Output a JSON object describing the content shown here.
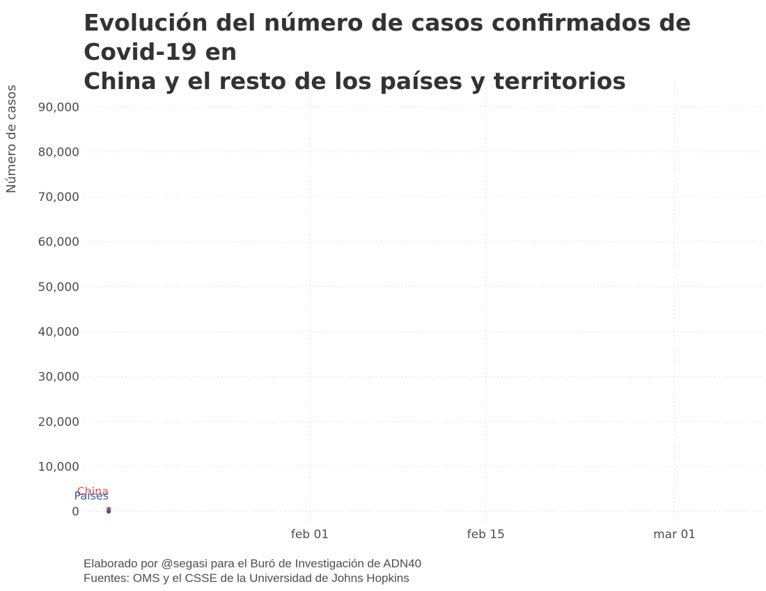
{
  "title": {
    "line1": "Evolución del número de casos confirmados de Covid-19 en",
    "line2": "China y el resto de los países y territorios"
  },
  "caption": {
    "line1": "Elaborado por @segasi para el Buró de Investigación de ADN40",
    "line2": "Fuentes: OMS y el CSSE de la Universidad de Johns Hopkins"
  },
  "chart_data": {
    "type": "line",
    "title": "Evolución del número de casos confirmados de Covid-19 en China y el resto de los países y territorios",
    "xlabel": "",
    "ylabel": "Número de casos",
    "x_type": "date",
    "xlim": [
      "2020-01-14",
      "2020-03-08"
    ],
    "ylim": [
      -3000,
      96000
    ],
    "x_ticks": [
      {
        "date": "2020-02-01",
        "label": "feb 01"
      },
      {
        "date": "2020-02-15",
        "label": "feb 15"
      },
      {
        "date": "2020-03-01",
        "label": "mar 01"
      }
    ],
    "y_ticks": [
      {
        "value": 0,
        "label": "0"
      },
      {
        "value": 10000,
        "label": "10,000"
      },
      {
        "value": 20000,
        "label": "20,000"
      },
      {
        "value": 30000,
        "label": "30,000"
      },
      {
        "value": 40000,
        "label": "40,000"
      },
      {
        "value": 50000,
        "label": "50,000"
      },
      {
        "value": 60000,
        "label": "60,000"
      },
      {
        "value": 70000,
        "label": "70,000"
      },
      {
        "value": 80000,
        "label": "80,000"
      },
      {
        "value": 90000,
        "label": "90,000"
      }
    ],
    "grid": true,
    "legend": "none",
    "series": [
      {
        "name": "China",
        "label": "China",
        "color": "#d9534f",
        "points": [
          {
            "x": "2020-01-16",
            "y": 550
          }
        ]
      },
      {
        "name": "Países",
        "label": "Países",
        "color": "#3b5b9c",
        "points": [
          {
            "x": "2020-01-16",
            "y": 10
          }
        ]
      }
    ]
  }
}
